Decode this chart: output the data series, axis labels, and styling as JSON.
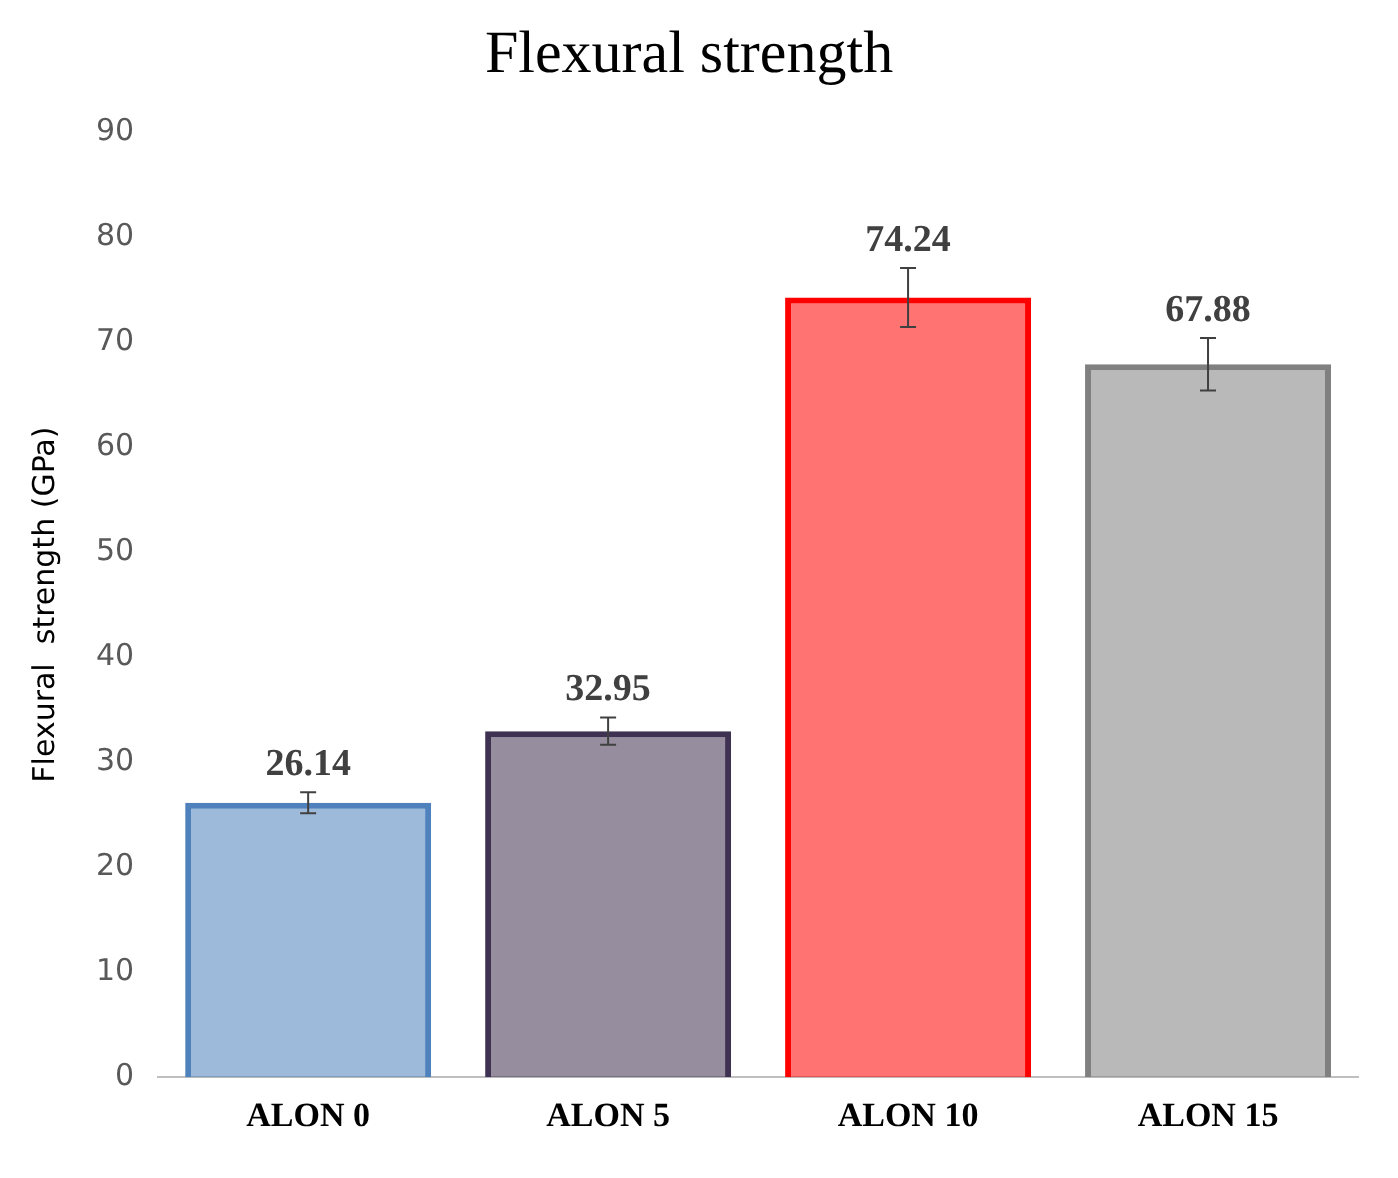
{
  "chart_data": {
    "type": "bar",
    "title": "Flexural strength",
    "ylabel": "Flexural  strength (GPa)",
    "categories": [
      "ALON 0",
      "ALON 5",
      "ALON 10",
      "ALON 15"
    ],
    "values": [
      26.14,
      32.95,
      74.24,
      67.88
    ],
    "colors": [
      "#4f81bd",
      "#3f3151",
      "#ff0000",
      "#808080"
    ],
    "errors": [
      1,
      1.3,
      2.8,
      2.5
    ],
    "ylim": [
      0,
      90
    ],
    "yticks": [
      0,
      10,
      20,
      30,
      40,
      50,
      60,
      70,
      80,
      90
    ],
    "grid": false,
    "legend": false,
    "data_labels": true
  }
}
